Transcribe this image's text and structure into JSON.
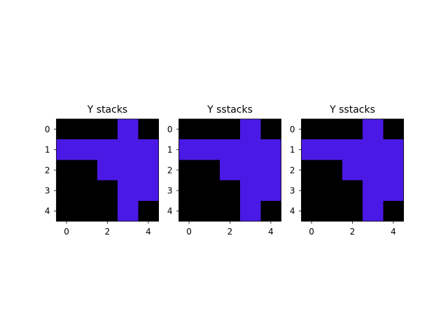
{
  "chart_data": [
    {
      "type": "heatmap",
      "title": "Y stacks",
      "xticks": [
        "0",
        "2",
        "4"
      ],
      "yticks": [
        "0",
        "1",
        "2",
        "3",
        "4"
      ],
      "grid": false,
      "colors": {
        "0": "#000000",
        "1": "#4b19e6"
      },
      "matrix": [
        [
          0,
          0,
          0,
          1,
          0
        ],
        [
          1,
          1,
          1,
          1,
          1
        ],
        [
          0,
          0,
          1,
          1,
          1
        ],
        [
          0,
          0,
          0,
          1,
          1
        ],
        [
          0,
          0,
          0,
          1,
          0
        ]
      ]
    },
    {
      "type": "heatmap",
      "title": "Y sstacks",
      "xticks": [
        "0",
        "2",
        "4"
      ],
      "yticks": [
        "0",
        "1",
        "2",
        "3",
        "4"
      ],
      "grid": false,
      "colors": {
        "0": "#000000",
        "1": "#4b19e6"
      },
      "matrix": [
        [
          0,
          0,
          0,
          1,
          0
        ],
        [
          1,
          1,
          1,
          1,
          1
        ],
        [
          0,
          0,
          1,
          1,
          1
        ],
        [
          0,
          0,
          0,
          1,
          1
        ],
        [
          0,
          0,
          0,
          1,
          0
        ]
      ]
    },
    {
      "type": "heatmap",
      "title": "Y sstacks",
      "xticks": [
        "0",
        "2",
        "4"
      ],
      "yticks": [
        "0",
        "1",
        "2",
        "3",
        "4"
      ],
      "grid": false,
      "colors": {
        "0": "#000000",
        "1": "#4b19e6"
      },
      "matrix": [
        [
          0,
          0,
          0,
          1,
          0
        ],
        [
          1,
          1,
          1,
          1,
          1
        ],
        [
          0,
          0,
          1,
          1,
          1
        ],
        [
          0,
          0,
          0,
          1,
          1
        ],
        [
          0,
          0,
          0,
          1,
          0
        ]
      ]
    }
  ]
}
